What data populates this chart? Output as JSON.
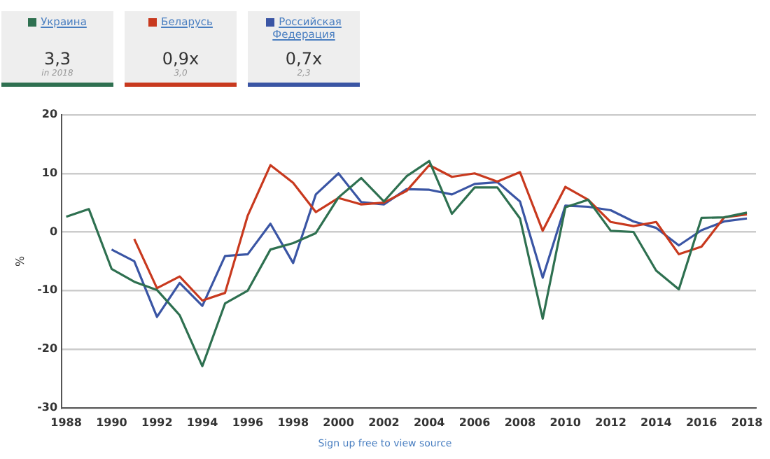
{
  "chart_data": {
    "type": "line",
    "ylabel": "%",
    "x": [
      1988,
      1989,
      1990,
      1991,
      1992,
      1993,
      1994,
      1995,
      1996,
      1997,
      1998,
      1999,
      2000,
      2001,
      2002,
      2003,
      2004,
      2005,
      2006,
      2007,
      2008,
      2009,
      2010,
      2011,
      2012,
      2013,
      2014,
      2015,
      2016,
      2017,
      2018
    ],
    "series": [
      {
        "name": "Украина",
        "color": "#2e7050",
        "values": [
          2.6,
          3.9,
          -6.3,
          -8.5,
          -9.9,
          -14.2,
          -22.9,
          -12.2,
          -10,
          -3,
          -1.9,
          -0.2,
          5.9,
          9.2,
          5.2,
          9.5,
          12.1,
          3.1,
          7.6,
          7.6,
          2.3,
          -14.8,
          4.2,
          5.5,
          0.2,
          0,
          -6.6,
          -9.8,
          2.4,
          2.5,
          3.3
        ]
      },
      {
        "name": "Беларусь",
        "color": "#c8391e",
        "values": [
          null,
          null,
          null,
          -1.2,
          -9.6,
          -7.6,
          -11.7,
          -10.4,
          2.8,
          11.4,
          8.4,
          3.4,
          5.8,
          4.7,
          5,
          7,
          11.4,
          9.4,
          10,
          8.6,
          10.2,
          0.2,
          7.7,
          5.5,
          1.7,
          1,
          1.7,
          -3.8,
          -2.5,
          2.5,
          3
        ]
      },
      {
        "name": "Российская Федерация",
        "color": "#3a55a4",
        "values": [
          null,
          null,
          -3,
          -5,
          -14.5,
          -8.7,
          -12.6,
          -4.1,
          -3.8,
          1.4,
          -5.3,
          6.4,
          10,
          5.1,
          4.7,
          7.3,
          7.2,
          6.4,
          8.2,
          8.5,
          5.2,
          -7.8,
          4.5,
          4.3,
          3.7,
          1.8,
          0.7,
          -2.3,
          0.3,
          1.8,
          2.3
        ]
      }
    ],
    "xlim": [
      1987.8,
      2018.4
    ],
    "xticks": [
      1988,
      1990,
      1992,
      1994,
      1996,
      1998,
      2000,
      2002,
      2004,
      2006,
      2008,
      2010,
      2012,
      2014,
      2016,
      2018
    ],
    "ylim": [
      -30,
      20
    ],
    "yticks": [
      -30,
      -20,
      -10,
      0,
      10,
      20
    ],
    "grid": "y",
    "legend": "top left",
    "marker": "none",
    "line_style": "solid",
    "annotations": [
      "3,3",
      "in 2018",
      "0,9x",
      "3,0",
      "0,7x",
      "2,3",
      "Sign up free to view source"
    ]
  }
}
